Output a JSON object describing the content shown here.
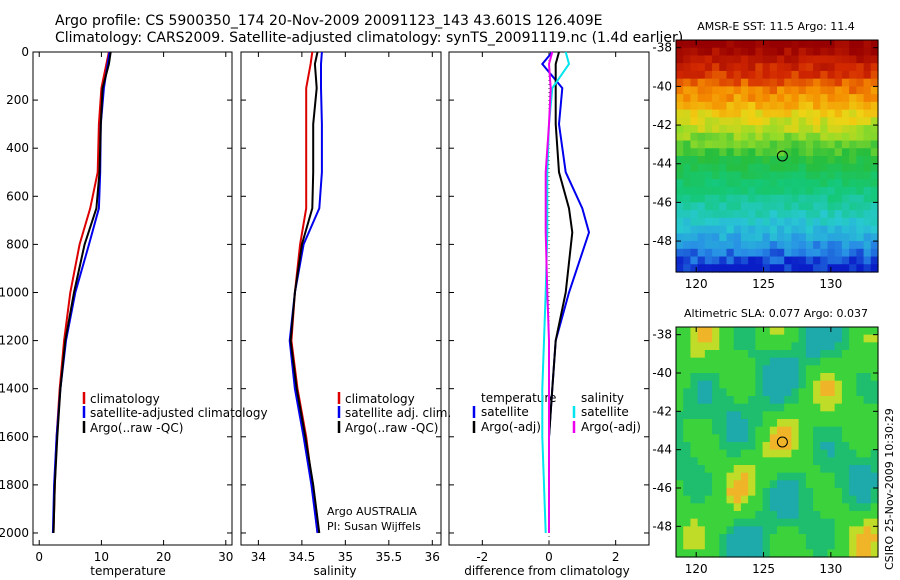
{
  "header": {
    "title_line1": "Argo profile: CS 5900350_174 20-Nov-2009 20091123_143 43.601S 126.409E",
    "title_line2": "Climatology: CARS2009. Satellite-adjusted climatology: synTS_20091119.nc (1.4d earlier)"
  },
  "panel_labels": {
    "temperature_xlabel": "temperature",
    "salinity_xlabel": "salinity",
    "difference_xlabel": "difference from climatology",
    "argo_note_1": "Argo AUSTRALIA",
    "argo_note_2": "PI: Susan Wijffels",
    "sst_map_title": "AMSR-E SST: 11.5 Argo: 11.4",
    "sla_map_title": "Altimetric SLA: 0.077 Argo: 0.037",
    "credit": "CSIRO 25-Nov-2009 10:30:29"
  },
  "legends": {
    "temperature": [
      "climatology",
      "satellite-adjusted climatology",
      "Argo(..raw -QC)"
    ],
    "salinity": [
      "climatology",
      "satellite adj. clim.",
      "Argo(..raw -QC)"
    ],
    "difference_temp_header": "temperature",
    "difference_temp": [
      "satellite",
      "Argo(-adj)"
    ],
    "difference_sal_header": "salinity",
    "difference_sal": [
      "satellite",
      "Argo(-adj)"
    ]
  },
  "colors": {
    "climatology": "#dd0000",
    "satellite_temp": "#0000ee",
    "argo": "#000000",
    "satellite_sal": "#00e5ee",
    "argo_sal_diff": "#ee00ee"
  },
  "chart_data": [
    {
      "type": "line",
      "xlabel": "temperature",
      "ylabel": "",
      "xlim": [
        -1,
        31
      ],
      "ylim": [
        2050,
        0
      ],
      "xticks": [
        "0",
        "10",
        "20",
        "30"
      ],
      "yticks": [
        "0",
        "200",
        "400",
        "600",
        "800",
        "1000",
        "1200",
        "1400",
        "1600",
        "1800",
        "2000"
      ],
      "series": [
        {
          "name": "climatology",
          "x": [
            11.2,
            10.8,
            10.0,
            9.6,
            9.4,
            8.2,
            6.5,
            5.0,
            4.0,
            3.3,
            2.8,
            2.5,
            2.3
          ],
          "y": [
            0,
            50,
            150,
            300,
            500,
            650,
            800,
            1000,
            1200,
            1400,
            1600,
            1800,
            2000
          ]
        },
        {
          "name": "satellite-adjusted climatology",
          "x": [
            11.3,
            11.0,
            10.4,
            9.9,
            9.8,
            9.6,
            8.0,
            5.8,
            4.3,
            3.4,
            2.8,
            2.4,
            2.2
          ],
          "y": [
            0,
            50,
            150,
            300,
            500,
            650,
            800,
            1000,
            1200,
            1400,
            1600,
            1800,
            2000
          ]
        },
        {
          "name": "Argo(..raw -QC)",
          "x": [
            11.5,
            11.2,
            10.2,
            9.9,
            9.7,
            9.2,
            7.3,
            5.6,
            4.2,
            3.4,
            2.9,
            2.5,
            2.3
          ],
          "y": [
            0,
            50,
            150,
            300,
            500,
            650,
            800,
            1000,
            1200,
            1400,
            1600,
            1800,
            2000
          ]
        }
      ]
    },
    {
      "type": "line",
      "xlabel": "salinity",
      "ylabel": "",
      "xlim": [
        33.8,
        36.1
      ],
      "ylim": [
        2050,
        0
      ],
      "xticks": [
        "34",
        "34.5",
        "35",
        "35.5",
        "36"
      ],
      "series": [
        {
          "name": "climatology",
          "x": [
            34.62,
            34.6,
            34.55,
            34.55,
            34.55,
            34.55,
            34.48,
            34.42,
            34.38,
            34.45,
            34.55,
            34.62,
            34.68
          ],
          "y": [
            0,
            50,
            150,
            300,
            500,
            650,
            800,
            1000,
            1200,
            1400,
            1600,
            1800,
            2000
          ]
        },
        {
          "name": "satellite adj. clim.",
          "x": [
            34.73,
            34.72,
            34.72,
            34.73,
            34.73,
            34.7,
            34.52,
            34.42,
            34.36,
            34.42,
            34.52,
            34.61,
            34.68
          ],
          "y": [
            0,
            50,
            150,
            300,
            500,
            650,
            800,
            1000,
            1200,
            1400,
            1600,
            1800,
            2000
          ]
        },
        {
          "name": "Argo(..raw -QC)",
          "x": [
            34.68,
            34.65,
            34.67,
            34.63,
            34.63,
            34.62,
            34.5,
            34.42,
            34.37,
            34.44,
            34.54,
            34.63,
            34.7
          ],
          "y": [
            0,
            50,
            150,
            300,
            500,
            650,
            800,
            1000,
            1200,
            1400,
            1600,
            1800,
            2000
          ]
        }
      ]
    },
    {
      "type": "line",
      "xlabel": "difference from climatology",
      "ylabel": "",
      "xlim": [
        -3,
        3
      ],
      "ylim": [
        2050,
        0
      ],
      "xticks": [
        "-2",
        "0",
        "2"
      ],
      "series": [
        {
          "name": "temperature satellite",
          "x": [
            0.1,
            -0.2,
            0.4,
            0.3,
            0.5,
            1.0,
            1.2,
            0.6,
            0.2,
            0.1,
            0.0,
            0.0,
            0.0
          ],
          "y": [
            0,
            50,
            150,
            300,
            500,
            650,
            750,
            1000,
            1200,
            1400,
            1600,
            1800,
            2000
          ]
        },
        {
          "name": "temperature Argo(-adj)",
          "x": [
            0.3,
            0.2,
            0.2,
            0.2,
            0.3,
            0.6,
            0.7,
            0.5,
            0.2,
            0.1,
            0.0,
            0.0,
            0.0
          ],
          "y": [
            0,
            50,
            150,
            300,
            500,
            650,
            750,
            1000,
            1200,
            1400,
            1600,
            1800,
            2000
          ]
        },
        {
          "name": "salinity satellite",
          "x": [
            0.5,
            0.6,
            0.1,
            0.0,
            -0.05,
            -0.05,
            -0.05,
            -0.1,
            -0.15,
            -0.2,
            -0.2,
            -0.15,
            -0.1
          ],
          "y": [
            0,
            50,
            150,
            300,
            500,
            650,
            750,
            1000,
            1200,
            1400,
            1600,
            1800,
            2000
          ]
        },
        {
          "name": "salinity Argo(-adj)",
          "x": [
            0.1,
            0.0,
            0.05,
            0.0,
            -0.1,
            -0.1,
            -0.1,
            -0.05,
            0.0,
            0.0,
            0.0,
            0.0,
            0.0
          ],
          "y": [
            0,
            50,
            150,
            300,
            500,
            650,
            750,
            1000,
            1200,
            1400,
            1600,
            1800,
            2000
          ]
        }
      ]
    },
    {
      "type": "heatmap",
      "title": "AMSR-E SST: 11.5 Argo: 11.4",
      "xlim": [
        118.5,
        133.5
      ],
      "ylim": [
        -49.6,
        -37.6
      ],
      "xticks": [
        "120",
        "125",
        "130"
      ],
      "yticks": [
        "-38",
        "-40",
        "-42",
        "-44",
        "-46",
        "-48"
      ],
      "marker": {
        "lon": 126.4,
        "lat": -43.6
      }
    },
    {
      "type": "heatmap",
      "title": "Altimetric SLA: 0.077 Argo: 0.037",
      "xlim": [
        118.5,
        133.5
      ],
      "ylim": [
        -49.6,
        -37.6
      ],
      "xticks": [
        "120",
        "125",
        "130"
      ],
      "yticks": [
        "-38",
        "-40",
        "-42",
        "-44",
        "-46",
        "-48"
      ],
      "marker": {
        "lon": 126.4,
        "lat": -43.6
      }
    }
  ]
}
